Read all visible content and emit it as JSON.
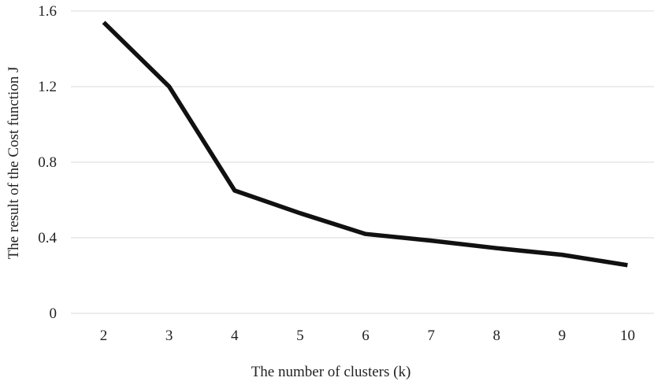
{
  "chart_data": {
    "type": "line",
    "title": "",
    "xlabel": "The number of clusters (k)",
    "ylabel": "The result of the Cost function J",
    "categories": [
      "2",
      "3",
      "4",
      "5",
      "6",
      "7",
      "8",
      "9",
      "10"
    ],
    "series": [
      {
        "values": [
          1.54,
          1.2,
          0.65,
          0.53,
          0.42,
          0.385,
          0.345,
          0.31,
          0.255
        ]
      }
    ],
    "ylim": [
      0,
      1.6
    ],
    "yticks": [
      "0",
      "0.4",
      "0.8",
      "1.2",
      "1.6"
    ],
    "grid": true,
    "legend": "none",
    "line_color": "#111111",
    "grid_color": "#d9d9d9"
  }
}
